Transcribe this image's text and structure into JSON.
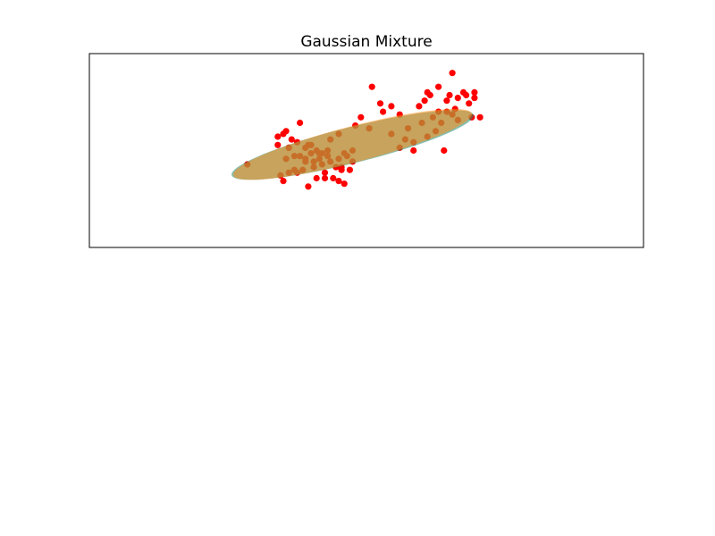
{
  "chart_data": {
    "type": "scatter",
    "title": "Gaussian Mixture",
    "xlabel": "",
    "ylabel": "",
    "xlim": [
      -10,
      10
    ],
    "ylim": [
      -3,
      4
    ],
    "ticks_visible": false,
    "grid": false,
    "series": [
      {
        "color": "#ff0000",
        "x": [
          -4.3,
          -3.2,
          -3.1,
          -3.0,
          -2.9,
          -2.8,
          -2.6,
          -2.8,
          -2.5,
          -2.4,
          -2.3,
          -2.2,
          -2.1,
          -2.0,
          -1.9,
          -1.8,
          -1.7,
          -1.6,
          -1.5,
          -1.4,
          -1.3,
          -1.2,
          -1.0,
          -0.9,
          -0.8,
          -0.6,
          -0.5,
          -2.9,
          -2.7,
          -2.4,
          -2.0,
          -1.7,
          -1.3,
          -1.0,
          -0.4,
          -0.2,
          0.2,
          0.5,
          0.9,
          1.2,
          1.5,
          1.7,
          1.9,
          2.0,
          2.2,
          2.3,
          2.5,
          2.6,
          2.7,
          2.9,
          3.0,
          3.1,
          3.3,
          3.5,
          3.9,
          4.1,
          3.3,
          2.8,
          -1.8,
          -2.2,
          0.6,
          1.4,
          2.1,
          2.6,
          -0.8,
          -1.0,
          -1.5,
          -2.1,
          -2.5,
          -2.8,
          -3.0,
          -3.2,
          -2.6,
          -2.2,
          -1.9,
          -1.6,
          -1.4,
          -1.1,
          -0.9,
          -0.7,
          -0.5,
          0.1,
          0.9,
          1.2,
          2.4,
          2.9,
          3.7,
          3.8,
          3.2,
          2.2,
          1.7,
          3.6,
          3.9,
          3.1
        ],
        "y": [
          0.0,
          1.0,
          -0.4,
          -0.6,
          0.2,
          0.6,
          -0.2,
          -0.3,
          0.8,
          0.3,
          -0.2,
          0.1,
          0.7,
          0.4,
          -0.1,
          0.5,
          0.2,
          0.0,
          -0.3,
          0.3,
          0.1,
          -0.5,
          0.2,
          -0.1,
          0.4,
          -0.2,
          0.1,
          1.2,
          0.9,
          1.5,
          0.7,
          0.4,
          0.9,
          1.1,
          1.4,
          1.7,
          2.8,
          2.2,
          2.1,
          1.8,
          1.3,
          0.5,
          2.1,
          1.5,
          2.6,
          2.5,
          1.2,
          2.8,
          1.5,
          2.3,
          2.5,
          3.3,
          2.4,
          2.6,
          2.4,
          1.7,
          1.6,
          0.5,
          -0.5,
          0.6,
          1.9,
          0.9,
          2.3,
          1.9,
          -0.7,
          -0.6,
          -0.5,
          -0.8,
          -0.3,
          0.6,
          1.1,
          0.7,
          0.3,
          0.2,
          0.1,
          0.4,
          0.5,
          -0.1,
          -0.2,
          0.3,
          0.5,
          1.3,
          1.1,
          0.6,
          1.7,
          1.9,
          2.2,
          1.7,
          2.0,
          1.0,
          0.8,
          2.5,
          2.6,
          1.8
        ]
      }
    ],
    "ellipses": [
      {
        "center_x": -0.5,
        "center_y": 0.7,
        "semi_major": 4.5,
        "semi_minor": 0.65,
        "angle_deg": 14,
        "color": "#1f8a70",
        "alpha": 0.55
      },
      {
        "center_x": -0.5,
        "center_y": 0.72,
        "semi_major": 4.45,
        "semi_minor": 0.65,
        "angle_deg": 14.5,
        "color": "#ff8c1a",
        "alpha": 0.55
      }
    ]
  }
}
